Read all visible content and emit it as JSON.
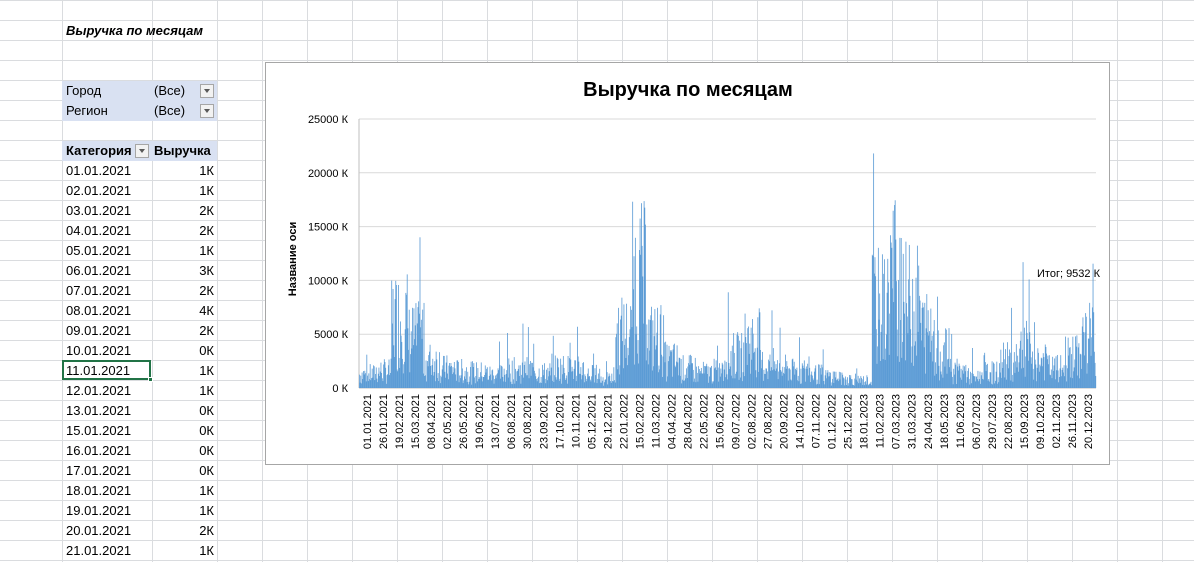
{
  "sheet": {
    "report_title": "Выручка по месяцам",
    "filters": [
      {
        "label": "Город",
        "value": "(Все)"
      },
      {
        "label": "Регион",
        "value": "(Все)"
      }
    ],
    "table": {
      "headers": [
        "Категория",
        "Выручка"
      ],
      "rows": [
        {
          "date": "01.01.2021",
          "value": "1К"
        },
        {
          "date": "02.01.2021",
          "value": "1К"
        },
        {
          "date": "03.01.2021",
          "value": "2К"
        },
        {
          "date": "04.01.2021",
          "value": "2К"
        },
        {
          "date": "05.01.2021",
          "value": "1К"
        },
        {
          "date": "06.01.2021",
          "value": "3К"
        },
        {
          "date": "07.01.2021",
          "value": "2К"
        },
        {
          "date": "08.01.2021",
          "value": "4К"
        },
        {
          "date": "09.01.2021",
          "value": "2К"
        },
        {
          "date": "10.01.2021",
          "value": "0К"
        },
        {
          "date": "11.01.2021",
          "value": "1К"
        },
        {
          "date": "12.01.2021",
          "value": "1К"
        },
        {
          "date": "13.01.2021",
          "value": "0К"
        },
        {
          "date": "15.01.2021",
          "value": "0К"
        },
        {
          "date": "16.01.2021",
          "value": "0К"
        },
        {
          "date": "17.01.2021",
          "value": "0К"
        },
        {
          "date": "18.01.2021",
          "value": "1К"
        },
        {
          "date": "19.01.2021",
          "value": "1К"
        },
        {
          "date": "20.01.2021",
          "value": "2К"
        },
        {
          "date": "21.01.2021",
          "value": "1К"
        }
      ]
    }
  },
  "chart_data": {
    "type": "bar",
    "title": "Выручка по месяцам",
    "xlabel": "",
    "ylabel": "Название оси",
    "ylim": [
      0,
      25000
    ],
    "y_ticks": [
      "0 К",
      "5000 К",
      "10000 К",
      "15000 К",
      "20000 К",
      "25000 К"
    ],
    "x_tick_labels": [
      "01.01.2021",
      "26.01.2021",
      "19.02.2021",
      "15.03.2021",
      "08.04.2021",
      "02.05.2021",
      "26.05.2021",
      "19.06.2021",
      "13.07.2021",
      "06.08.2021",
      "30.08.2021",
      "23.09.2021",
      "17.10.2021",
      "10.11.2021",
      "05.12.2021",
      "29.12.2021",
      "22.01.2022",
      "15.02.2022",
      "11.03.2022",
      "04.04.2022",
      "28.04.2022",
      "22.05.2022",
      "15.06.2022",
      "09.07.2022",
      "02.08.2022",
      "27.08.2022",
      "20.09.2022",
      "14.10.2022",
      "07.11.2022",
      "01.12.2022",
      "25.12.2022",
      "18.01.2023",
      "11.02.2023",
      "07.03.2023",
      "31.03.2023",
      "24.04.2023",
      "18.05.2023",
      "11.06.2023",
      "06.07.2023",
      "29.07.2023",
      "22.08.2023",
      "15.09.2023",
      "09.10.2023",
      "02.11.2023",
      "26.11.2023",
      "20.12.2023"
    ],
    "series": [
      {
        "color": "#5b9bd5",
        "monthly_values_k": [
          1800,
          2200,
          9000,
          6500,
          3500,
          2500,
          2200,
          2000,
          1800,
          2300,
          2400,
          2000,
          2600,
          2500,
          1800,
          1200,
          7000,
          14000,
          6500,
          3500,
          2500,
          2000,
          2200,
          4200,
          6000,
          3000,
          2500,
          2200,
          1800,
          1500,
          1200,
          1000,
          10500,
          15000,
          11000,
          7500,
          4500,
          2200,
          1500,
          2000,
          3500,
          5000,
          3500,
          2500,
          4000,
          6500
        ]
      }
    ],
    "grid": true,
    "data_label": "Итог; 9532 К"
  },
  "colors": {
    "bar": "#5b9bd5",
    "filter_bg": "#d9e1f2",
    "selection": "#217346",
    "gridline": "#d9d9d9"
  }
}
